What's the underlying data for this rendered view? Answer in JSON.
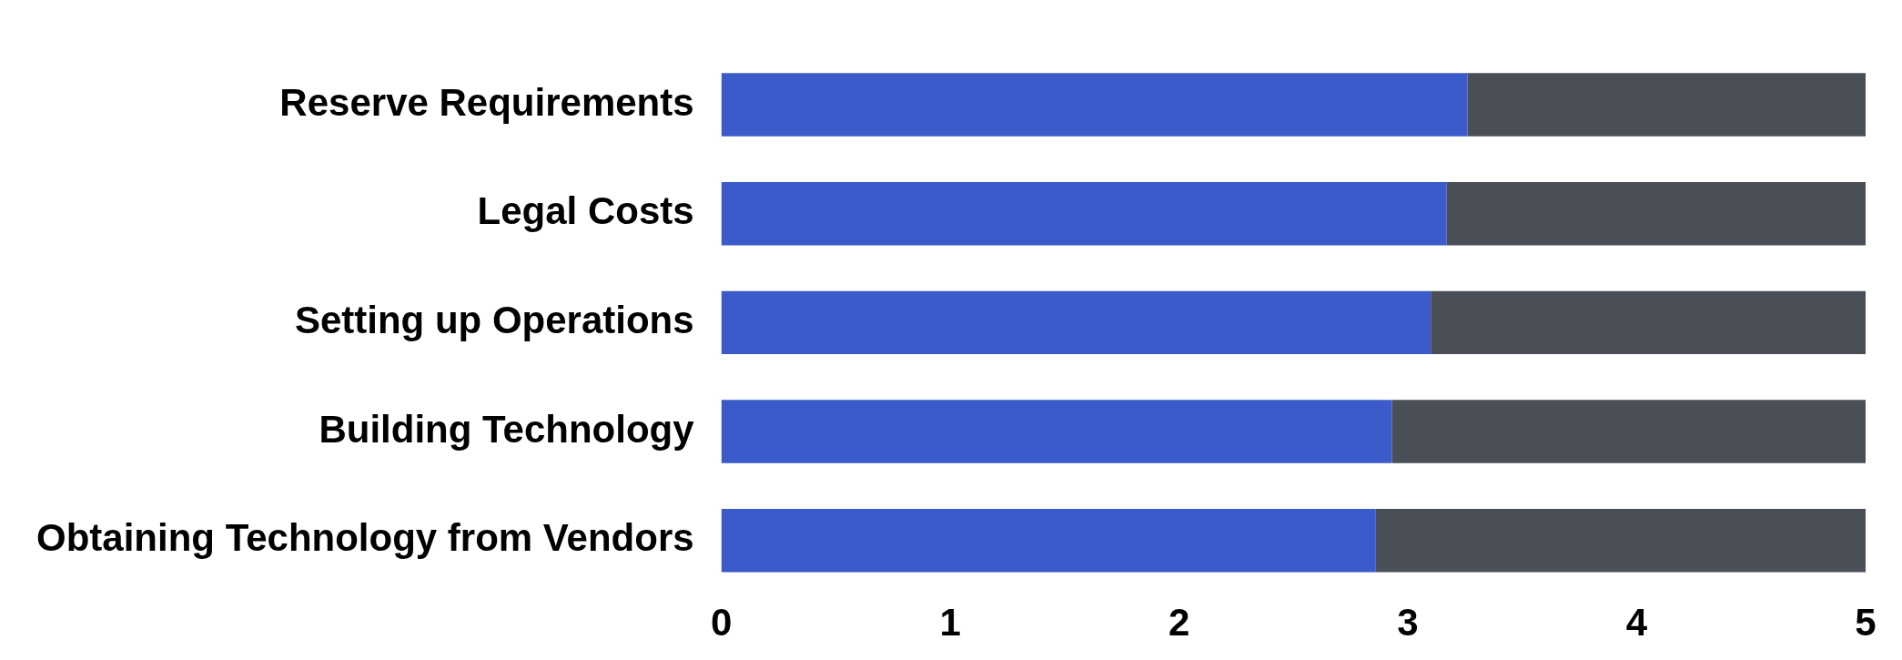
{
  "chart_data": {
    "type": "bar",
    "orientation": "horizontal",
    "stacked": true,
    "categories": [
      "Reserve Requirements",
      "Legal Costs",
      "Setting up Operations",
      "Building Technology",
      "Obtaining Technology from Vendors"
    ],
    "series": [
      {
        "color": "#3a5bc9",
        "values": [
          3.26,
          3.17,
          3.1,
          2.93,
          2.86
        ]
      },
      {
        "color": "#4a4f57",
        "values": [
          1.74,
          1.83,
          1.9,
          2.07,
          2.14
        ]
      }
    ],
    "xlim": [
      0,
      5
    ],
    "xticks": [
      0,
      1,
      2,
      3,
      4,
      5
    ],
    "grid": false,
    "legend": false
  }
}
